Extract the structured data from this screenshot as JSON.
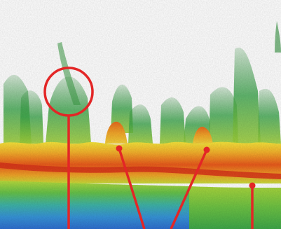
{
  "image": {
    "kind": "sonar-echogram",
    "palette": {
      "background": "#ffffff",
      "water_low": "#4aa64a",
      "water_mid": "#b8d83a",
      "echo_yellow": "#f5e33a",
      "echo_orange": "#f3a628",
      "echo_red": "#e53a18",
      "bottom_green": "#8fcf3c",
      "bottom_blue": "#2e7ed6",
      "annotation": "#e32626"
    },
    "annotation_icons": [
      "circle-marker",
      "pointer-line",
      "dot-marker"
    ]
  }
}
